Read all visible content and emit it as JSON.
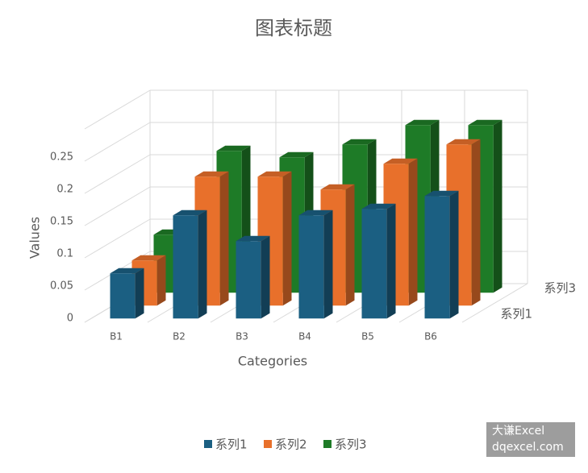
{
  "chart_data": {
    "type": "bar3d",
    "title": "图表标题",
    "categories": [
      "B1",
      "B2",
      "B3",
      "B4",
      "B5",
      "B6"
    ],
    "depth_labels": [
      "系列1",
      null,
      "系列3"
    ],
    "series": [
      {
        "name": "系列1",
        "color": "#1b5f82",
        "values": [
          0.07,
          0.16,
          0.12,
          0.16,
          0.17,
          0.19
        ]
      },
      {
        "name": "系列2",
        "color": "#e8702b",
        "values": [
          0.07,
          0.2,
          0.2,
          0.18,
          0.22,
          0.25
        ]
      },
      {
        "name": "系列3",
        "color": "#1e7b27",
        "values": [
          0.09,
          0.22,
          0.21,
          0.23,
          0.26,
          0.26
        ]
      }
    ],
    "xlabel": "Categories",
    "ylabel": "Values",
    "ylim": [
      0,
      0.3
    ],
    "yticks": [
      0,
      0.05,
      0.1,
      0.15,
      0.2,
      0.25
    ],
    "grid": true,
    "legend": "bottom",
    "watermark": [
      "大谦Excel",
      "dqexcel.com"
    ]
  }
}
